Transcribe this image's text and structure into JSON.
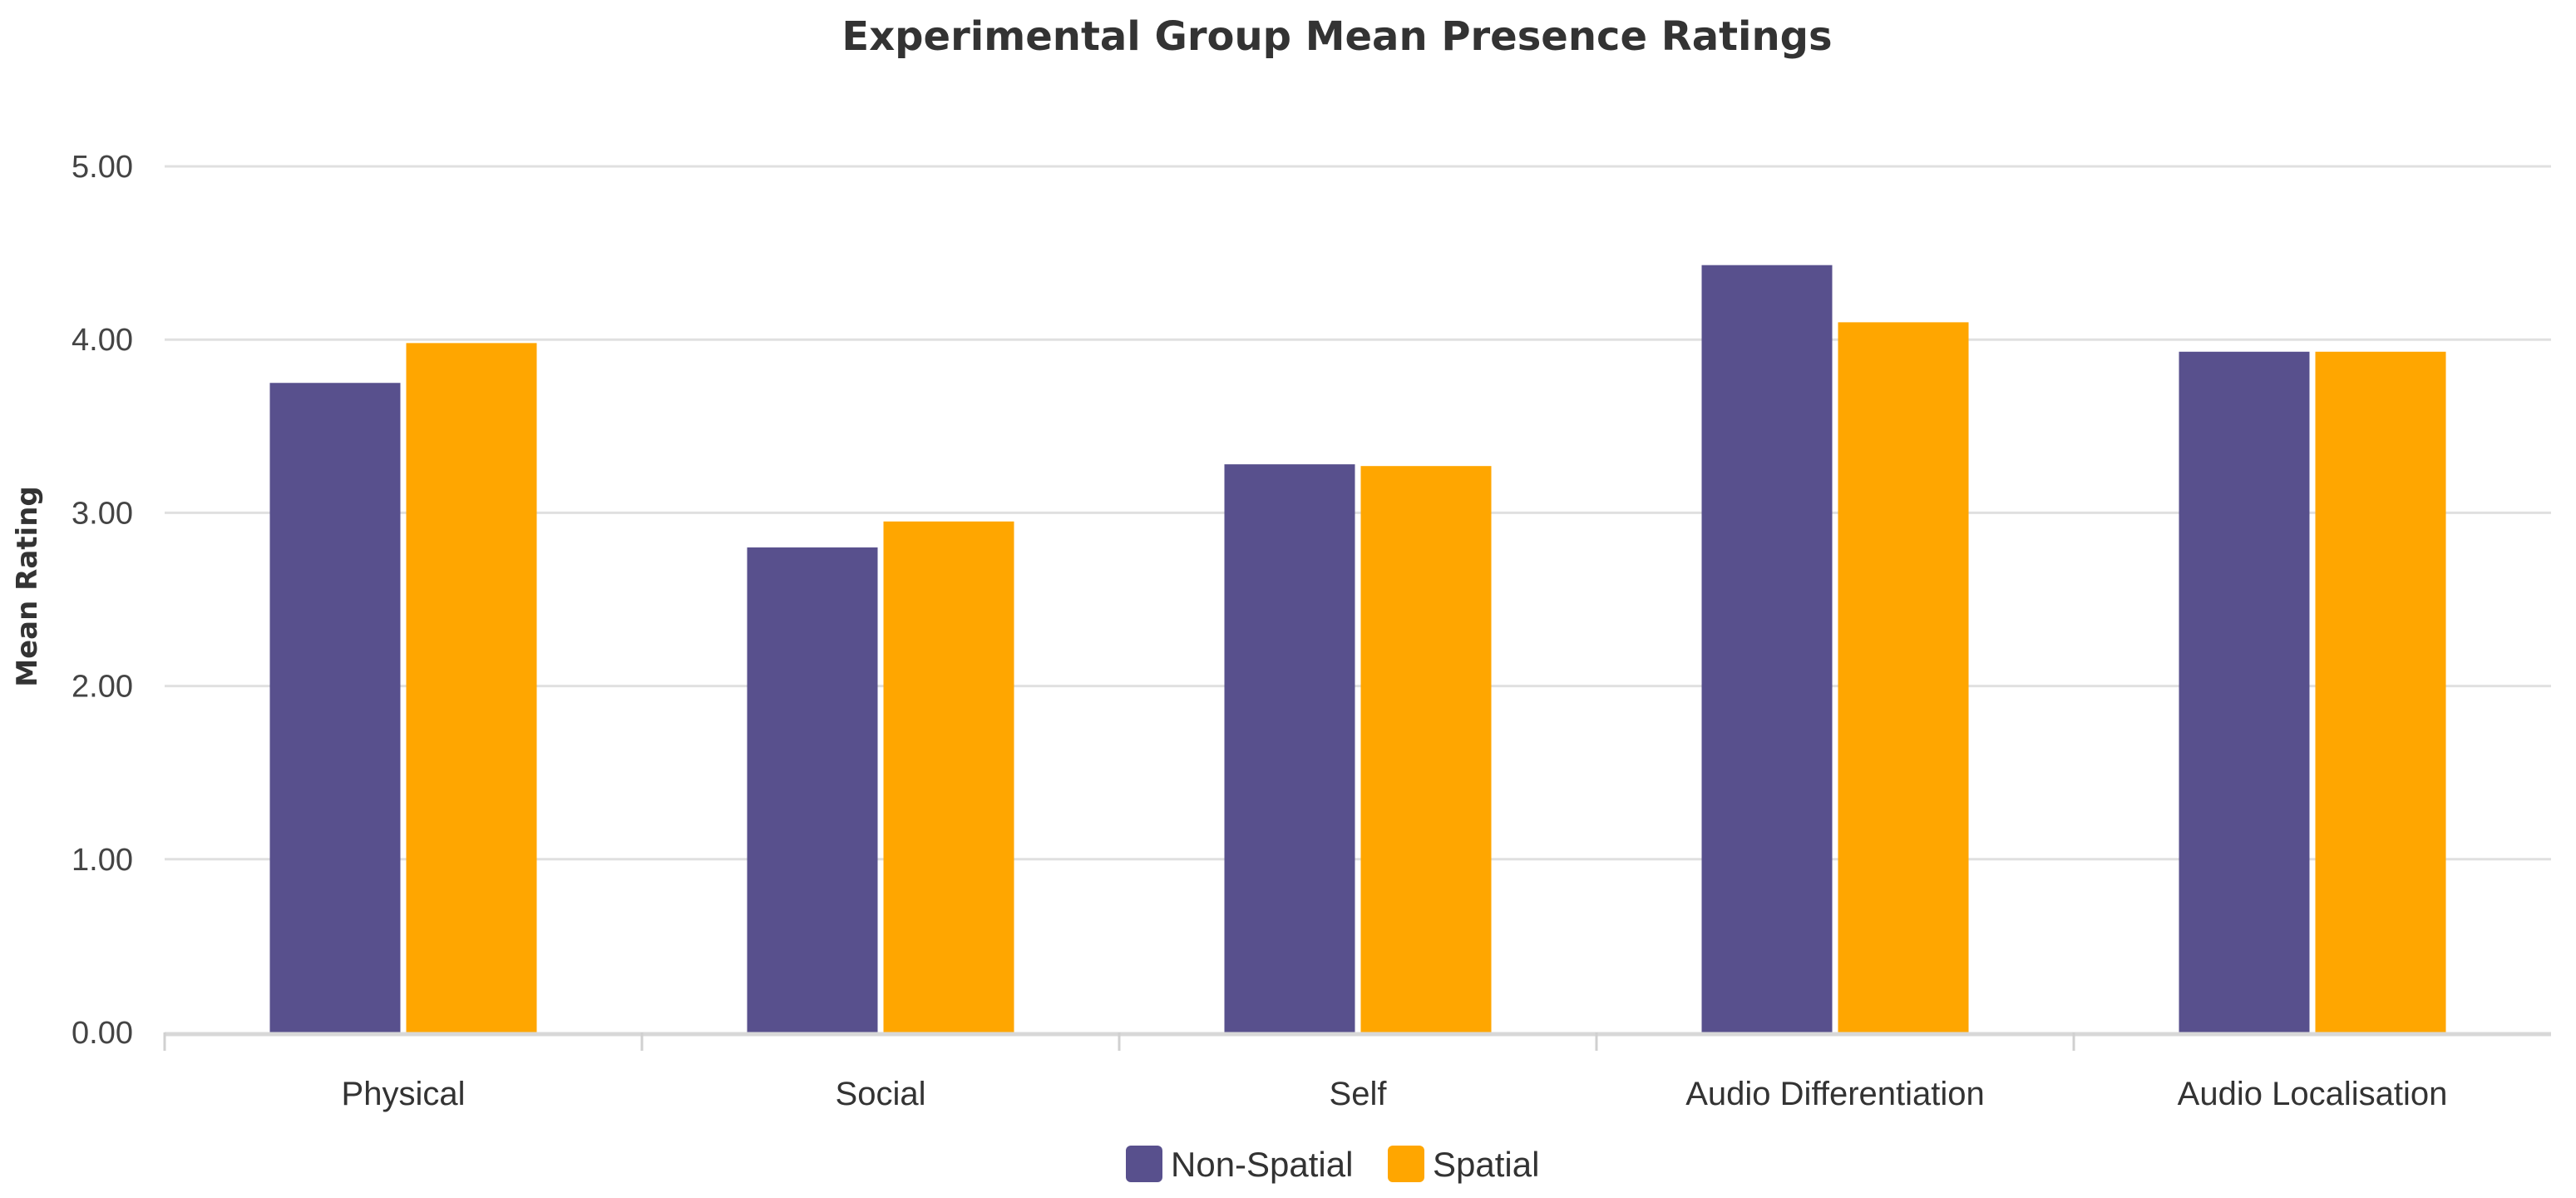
{
  "chart_data": {
    "type": "bar",
    "title": "Experimental Group Mean Presence Ratings",
    "xlabel": "",
    "ylabel": "Mean Rating",
    "ylim": [
      0,
      5
    ],
    "yticks": [
      "0.00",
      "1.00",
      "2.00",
      "3.00",
      "4.00",
      "5.00"
    ],
    "grid": true,
    "legend_position": "bottom-center",
    "categories": [
      "Physical",
      "Social",
      "Self",
      "Audio Differentiation",
      "Audio Localisation"
    ],
    "series": [
      {
        "name": "Non-Spatial",
        "color": "#58508d",
        "values": [
          3.75,
          2.8,
          3.28,
          4.43,
          3.93
        ]
      },
      {
        "name": "Spatial",
        "color": "#ffa600",
        "values": [
          3.98,
          2.95,
          3.27,
          4.1,
          3.93
        ]
      }
    ]
  }
}
